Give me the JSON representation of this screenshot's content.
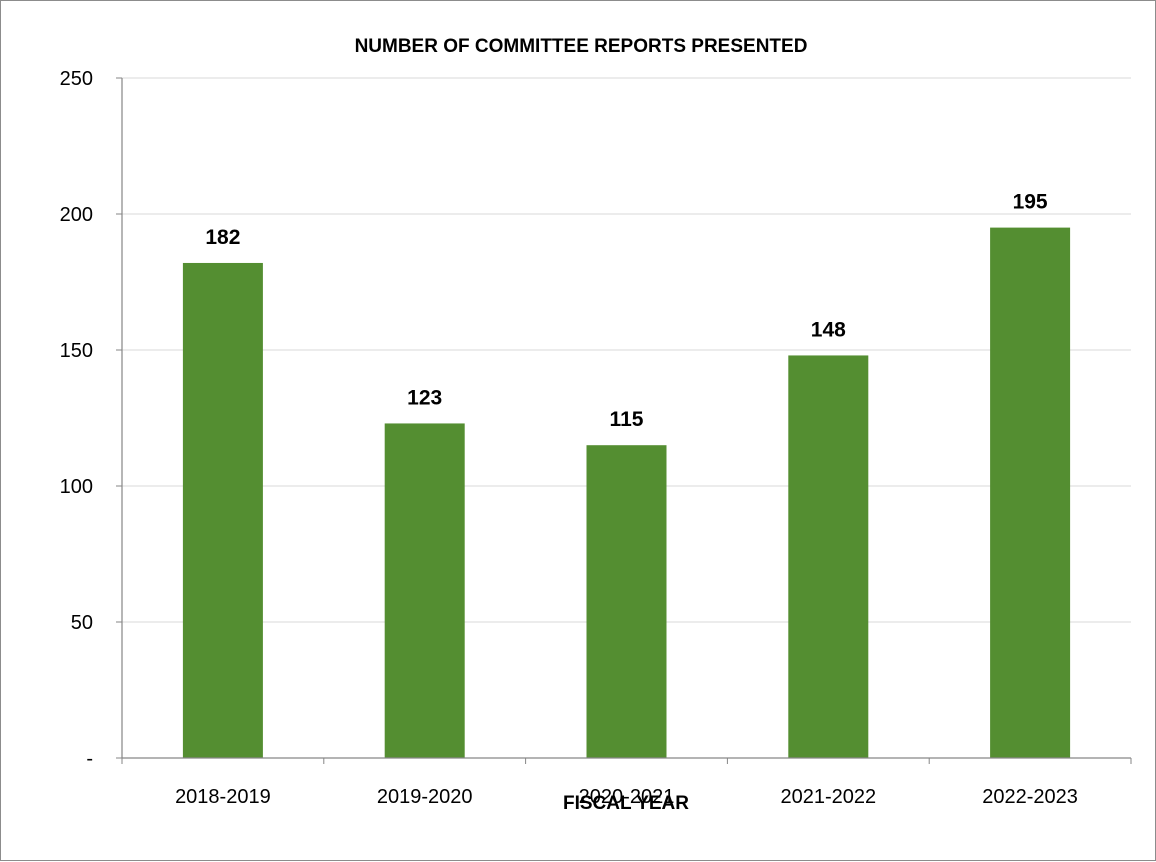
{
  "chart_data": {
    "type": "bar",
    "title": "NUMBER OF COMMITTEE REPORTS PRESENTED",
    "xlabel": "FISCAL YEAR",
    "ylabel": "",
    "categories": [
      "2018-2019",
      "2019-2020",
      "2020-2021",
      "2021-2022",
      "2022-2023"
    ],
    "values": [
      182,
      123,
      115,
      148,
      195
    ],
    "data_labels": [
      "182",
      "123",
      "115",
      "148",
      "195"
    ],
    "ylim": [
      0,
      250
    ],
    "yticks": [
      0,
      50,
      100,
      150,
      200,
      250
    ],
    "ytick_labels": [
      "-",
      "50",
      "100",
      "150",
      "200",
      "250"
    ],
    "grid": true,
    "legend": "none",
    "bar_color": "#548e31",
    "gridline_color": "#d9d9d9",
    "axis_color": "#868686"
  }
}
